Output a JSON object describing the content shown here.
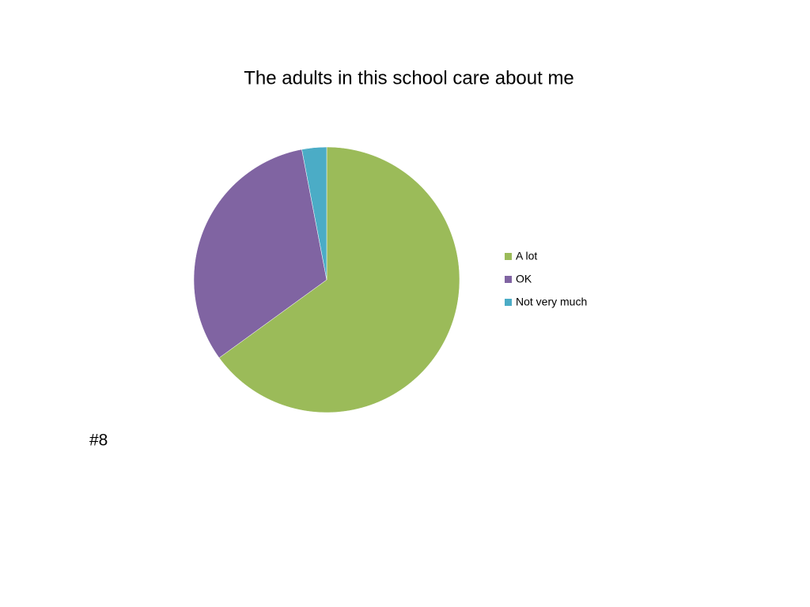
{
  "chart_data": {
    "type": "pie",
    "title": "The adults in this school care about me",
    "categories": [
      "A lot",
      "OK",
      "Not very much"
    ],
    "values": [
      65,
      32,
      3
    ],
    "colors": [
      "#9bbb59",
      "#8064a2",
      "#4bacc6"
    ],
    "legend": "right",
    "annotations": [
      "#8"
    ]
  }
}
